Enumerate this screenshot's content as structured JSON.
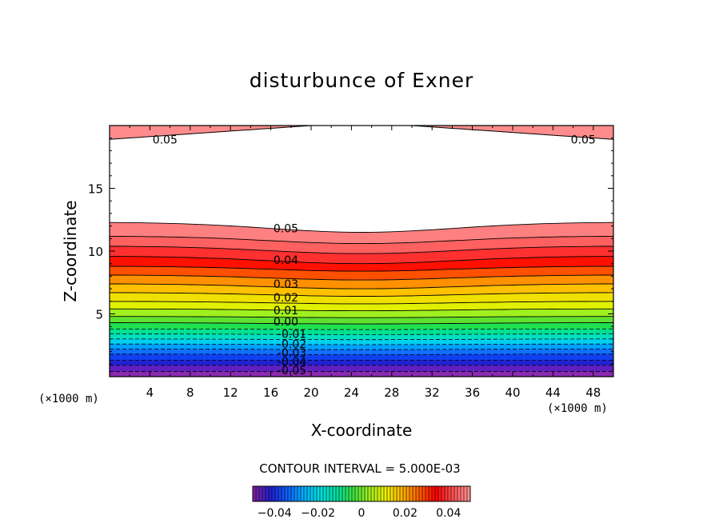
{
  "chart_data": {
    "type": "contour",
    "title": "disturbunce of Exner",
    "xlabel": "X-coordinate",
    "ylabel": "Z-coordinate",
    "x_unit": "(×1000 m)",
    "y_unit": "(×1000 m)",
    "xlim": [
      0,
      50
    ],
    "ylim": [
      0,
      20
    ],
    "x_ticks": [
      4,
      8,
      12,
      16,
      20,
      24,
      28,
      32,
      36,
      40,
      44,
      48
    ],
    "y_ticks": [
      5,
      10,
      15
    ],
    "contour_interval_text": "CONTOUR INTERVAL = 5.000E-03",
    "contour_interval": 0.005,
    "colorbar": {
      "range": [
        -0.05,
        0.05
      ],
      "ticks": [
        -0.04,
        -0.02,
        0,
        0.02,
        0.04
      ],
      "tick_labels": [
        "−0.04",
        "−0.02",
        "0",
        "0.02",
        "0.04"
      ],
      "colors": [
        "#7a1fa0",
        "#2020d0",
        "#1060ff",
        "#00b0ff",
        "#00e0e0",
        "#00e0a0",
        "#40e040",
        "#a0f020",
        "#f0f000",
        "#ffb000",
        "#ff6000",
        "#ff0000",
        "#ff5050",
        "#ff9090"
      ]
    },
    "contour_labels": [
      {
        "text": "0.05",
        "x": 5.5,
        "z": 18.9
      },
      {
        "text": "0.05",
        "x": 47,
        "z": 18.9
      },
      {
        "text": "0.05",
        "x": 17.5,
        "z": 11.8
      },
      {
        "text": "0.04",
        "x": 17.5,
        "z": 9.3
      },
      {
        "text": "0.03",
        "x": 17.5,
        "z": 7.4
      },
      {
        "text": "0.02",
        "x": 17.5,
        "z": 6.3
      },
      {
        "text": "0.01",
        "x": 17.5,
        "z": 5.3
      },
      {
        "text": "0.00",
        "x": 17.5,
        "z": 4.4
      },
      {
        "text": "-0.01",
        "x": 18.1,
        "z": 3.4
      },
      {
        "text": "-0.02",
        "x": 18.1,
        "z": 2.6
      },
      {
        "text": "-0.03",
        "x": 18.1,
        "z": 1.9
      },
      {
        "text": "-0.04",
        "x": 18.1,
        "z": 1.2
      },
      {
        "text": "-0.05",
        "x": 18.1,
        "z": 0.5
      }
    ]
  }
}
